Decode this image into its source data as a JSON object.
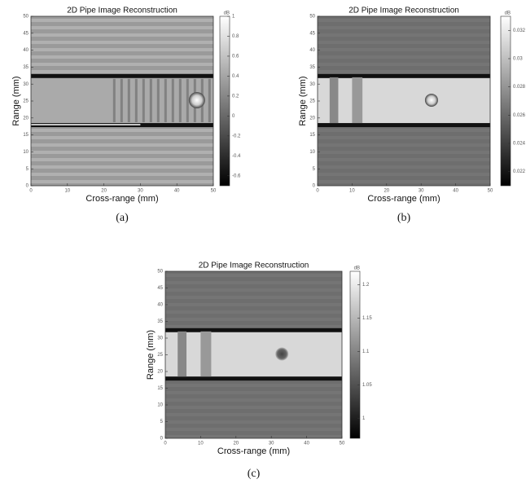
{
  "chart_data": [
    {
      "type": "heatmap",
      "title": "2D Pipe Image Reconstruction",
      "xlabel": "Cross-range (mm)",
      "ylabel": "Range (mm)",
      "caption": "(a)",
      "xlim": [
        0,
        50
      ],
      "xticks": [
        0,
        10,
        20,
        30,
        40,
        50
      ],
      "ylim": [
        0,
        50
      ],
      "yticks": [
        0,
        5,
        10,
        15,
        20,
        25,
        30,
        35,
        40,
        45,
        50
      ],
      "colorbar": {
        "label": "dB",
        "lim": [
          -0.7,
          1
        ],
        "ticks": [
          1,
          0.8,
          0.6,
          0.4,
          0.2,
          0,
          -0.2,
          -0.4,
          -0.6
        ]
      }
    },
    {
      "type": "heatmap",
      "title": "2D Pipe Image Reconstruction",
      "xlabel": "Cross-range (mm)",
      "ylabel": "Range (mm)",
      "caption": "(b)",
      "xlim": [
        0,
        50
      ],
      "xticks": [
        0,
        10,
        20,
        30,
        40,
        50
      ],
      "ylim": [
        0,
        50
      ],
      "yticks": [
        0,
        5,
        10,
        15,
        20,
        25,
        30,
        35,
        40,
        45,
        50
      ],
      "colorbar": {
        "label": "dB",
        "lim": [
          0.021,
          0.033
        ],
        "ticks": [
          0.032,
          0.03,
          0.028,
          0.026,
          0.024,
          0.022
        ]
      }
    },
    {
      "type": "heatmap",
      "title": "2D Pipe Image Reconstruction",
      "xlabel": "Cross-range (mm)",
      "ylabel": "Range (mm)",
      "caption": "(c)",
      "xlim": [
        0,
        50
      ],
      "xticks": [
        0,
        10,
        20,
        30,
        40,
        50
      ],
      "ylim": [
        0,
        50
      ],
      "yticks": [
        0,
        5,
        10,
        15,
        20,
        25,
        30,
        35,
        40,
        45,
        50
      ],
      "colorbar": {
        "label": "dB",
        "lim": [
          0.97,
          1.22
        ],
        "ticks": [
          1.2,
          1.15,
          1.1,
          1.05,
          1
        ]
      }
    }
  ]
}
